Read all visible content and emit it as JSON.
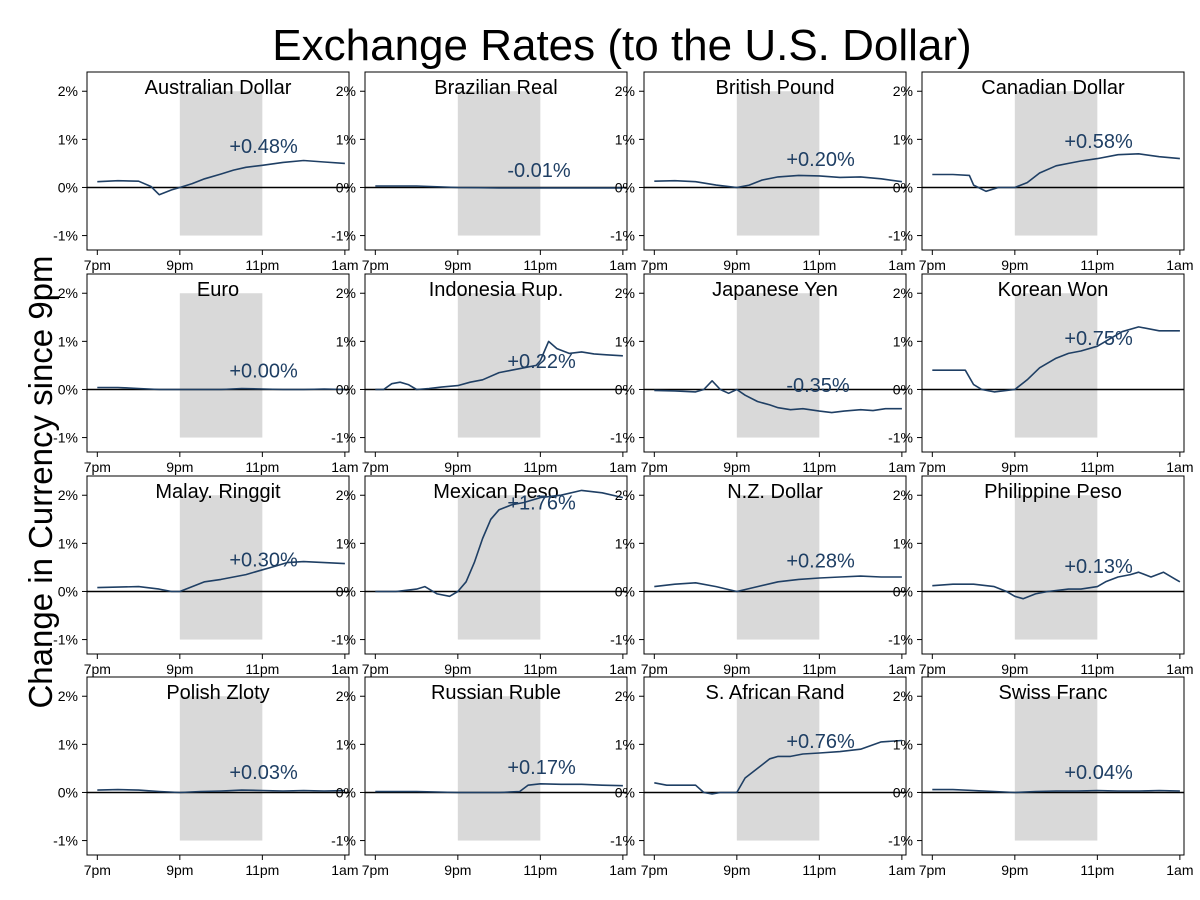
{
  "chart_data": {
    "type": "line",
    "title": "Exchange Rates (to the U.S. Dollar)",
    "ylabel": "Change in Currency since 9pm",
    "xlabel": "",
    "x_ticks": [
      0,
      2,
      4,
      6
    ],
    "x_tick_labels": [
      "7pm",
      "9pm",
      "11pm",
      "1am"
    ],
    "xlim": [
      -0.25,
      6.1
    ],
    "y_ticks": [
      -1,
      0,
      1,
      2
    ],
    "y_tick_labels": [
      "-1%",
      "0%",
      "1%",
      "2%"
    ],
    "ylim": [
      -1.3,
      2.4
    ],
    "shaded_interval": [
      2,
      4
    ],
    "shaded_y": [
      -1,
      2
    ],
    "colors": {
      "line": "#1f3f64",
      "annotation": "#1f3f64",
      "shade": "#d9d9d9",
      "zero_line": "#000000"
    },
    "panels": [
      {
        "name": "Australian Dollar",
        "annotation": "+0.48%",
        "ann_x": 3.2,
        "ann_y": 0.72,
        "x": [
          0,
          0.5,
          1,
          1.3,
          1.5,
          1.8,
          2,
          2.3,
          2.6,
          3,
          3.3,
          3.6,
          4,
          4.5,
          5,
          5.5,
          6
        ],
        "y": [
          0.12,
          0.14,
          0.13,
          0.02,
          -0.15,
          -0.05,
          0.0,
          0.08,
          0.18,
          0.28,
          0.36,
          0.42,
          0.46,
          0.52,
          0.56,
          0.53,
          0.5
        ]
      },
      {
        "name": "Brazilian Real",
        "annotation": "-0.01%",
        "ann_x": 3.2,
        "ann_y": 0.22,
        "x": [
          0,
          1,
          2,
          3,
          4,
          5,
          6
        ],
        "y": [
          0.03,
          0.03,
          0.0,
          -0.01,
          -0.01,
          -0.01,
          -0.01
        ]
      },
      {
        "name": "British Pound",
        "annotation": "+0.20%",
        "ann_x": 3.2,
        "ann_y": 0.45,
        "x": [
          0,
          0.5,
          1,
          1.5,
          1.8,
          2,
          2.3,
          2.6,
          3,
          3.5,
          4,
          4.5,
          5,
          5.5,
          6
        ],
        "y": [
          0.13,
          0.14,
          0.12,
          0.05,
          0.02,
          0.0,
          0.05,
          0.15,
          0.22,
          0.25,
          0.24,
          0.21,
          0.22,
          0.18,
          0.12
        ]
      },
      {
        "name": "Canadian Dollar",
        "annotation": "+0.58%",
        "ann_x": 3.2,
        "ann_y": 0.82,
        "x": [
          0,
          0.5,
          0.9,
          1,
          1.3,
          1.6,
          2,
          2.3,
          2.6,
          3,
          3.3,
          3.6,
          4,
          4.5,
          5,
          5.5,
          6
        ],
        "y": [
          0.27,
          0.27,
          0.25,
          0.05,
          -0.08,
          0.0,
          0.0,
          0.1,
          0.3,
          0.45,
          0.5,
          0.55,
          0.6,
          0.68,
          0.7,
          0.64,
          0.6
        ]
      },
      {
        "name": "Euro",
        "annotation": "+0.00%",
        "ann_x": 3.2,
        "ann_y": 0.25,
        "x": [
          0,
          0.5,
          1,
          1.5,
          2,
          2.5,
          3,
          3.5,
          4,
          4.5,
          5,
          5.5,
          6
        ],
        "y": [
          0.04,
          0.04,
          0.02,
          0.0,
          0.0,
          0.0,
          0.0,
          0.02,
          0.01,
          0.0,
          0.0,
          0.01,
          0.0
        ]
      },
      {
        "name": "Indonesia Rup.",
        "annotation": "+0.22%",
        "ann_x": 3.2,
        "ann_y": 0.45,
        "x": [
          0,
          0.2,
          0.4,
          0.6,
          0.8,
          1,
          1.3,
          1.6,
          2,
          2.3,
          2.6,
          3,
          3.3,
          3.6,
          3.9,
          4,
          4.1,
          4.2,
          4.4,
          4.7,
          5,
          5.3,
          5.6,
          6
        ],
        "y": [
          0.0,
          0.0,
          0.12,
          0.15,
          0.1,
          0.0,
          0.02,
          0.05,
          0.08,
          0.15,
          0.2,
          0.35,
          0.4,
          0.45,
          0.5,
          0.6,
          0.8,
          1.0,
          0.85,
          0.75,
          0.78,
          0.74,
          0.72,
          0.7
        ]
      },
      {
        "name": "Japanese Yen",
        "annotation": "-0.35%",
        "ann_x": 3.2,
        "ann_y": -0.05,
        "x": [
          0,
          0.5,
          1,
          1.2,
          1.4,
          1.6,
          1.8,
          2,
          2.2,
          2.5,
          2.8,
          3,
          3.3,
          3.6,
          4,
          4.3,
          4.6,
          5,
          5.3,
          5.6,
          6
        ],
        "y": [
          -0.02,
          -0.03,
          -0.05,
          0.0,
          0.18,
          0.0,
          -0.08,
          0.0,
          -0.12,
          -0.25,
          -0.32,
          -0.38,
          -0.42,
          -0.4,
          -0.45,
          -0.48,
          -0.45,
          -0.42,
          -0.44,
          -0.4,
          -0.4
        ]
      },
      {
        "name": "Korean Won",
        "annotation": "+0.75%",
        "ann_x": 3.2,
        "ann_y": 0.92,
        "x": [
          0,
          0.8,
          1,
          1.2,
          1.5,
          2,
          2.3,
          2.6,
          3,
          3.3,
          3.6,
          4,
          4.3,
          4.6,
          5,
          5.5,
          6
        ],
        "y": [
          0.4,
          0.4,
          0.1,
          0.0,
          -0.05,
          0.0,
          0.2,
          0.45,
          0.65,
          0.75,
          0.8,
          0.9,
          1.05,
          1.2,
          1.3,
          1.22,
          1.22
        ]
      },
      {
        "name": "Malay. Ringgit",
        "annotation": "+0.30%",
        "ann_x": 3.2,
        "ann_y": 0.52,
        "x": [
          0,
          0.5,
          1,
          1.5,
          1.8,
          2,
          2.3,
          2.6,
          3,
          3.3,
          3.6,
          4,
          4.3,
          4.6,
          5,
          5.5,
          6
        ],
        "y": [
          0.08,
          0.09,
          0.1,
          0.05,
          0.0,
          0.0,
          0.1,
          0.2,
          0.25,
          0.3,
          0.35,
          0.45,
          0.52,
          0.6,
          0.62,
          0.6,
          0.58
        ]
      },
      {
        "name": "Mexican Peso",
        "annotation": "+1.76%",
        "ann_x": 3.2,
        "ann_y": 1.7,
        "x": [
          0,
          0.5,
          1,
          1.2,
          1.5,
          1.8,
          2,
          2.2,
          2.4,
          2.6,
          2.8,
          3,
          3.3,
          3.6,
          4,
          4.5,
          5,
          5.5,
          6
        ],
        "y": [
          0.0,
          0.0,
          0.05,
          0.1,
          -0.05,
          -0.1,
          0.0,
          0.2,
          0.6,
          1.1,
          1.5,
          1.7,
          1.8,
          1.85,
          1.95,
          2.0,
          2.1,
          2.05,
          1.95
        ]
      },
      {
        "name": "N.Z. Dollar",
        "annotation": "+0.28%",
        "ann_x": 3.2,
        "ann_y": 0.5,
        "x": [
          0,
          0.5,
          1,
          1.5,
          2,
          2.5,
          3,
          3.5,
          4,
          4.5,
          5,
          5.5,
          6
        ],
        "y": [
          0.1,
          0.15,
          0.18,
          0.1,
          0.0,
          0.1,
          0.2,
          0.25,
          0.28,
          0.3,
          0.32,
          0.3,
          0.3
        ]
      },
      {
        "name": "Philippine Peso",
        "annotation": "+0.13%",
        "ann_x": 3.2,
        "ann_y": 0.38,
        "x": [
          0,
          0.5,
          1,
          1.5,
          1.8,
          2,
          2.2,
          2.5,
          2.8,
          3,
          3.3,
          3.6,
          4,
          4.2,
          4.5,
          4.8,
          5,
          5.3,
          5.6,
          5.9,
          6
        ],
        "y": [
          0.12,
          0.15,
          0.15,
          0.1,
          0.0,
          -0.1,
          -0.15,
          -0.05,
          0.0,
          0.02,
          0.05,
          0.05,
          0.1,
          0.2,
          0.3,
          0.35,
          0.4,
          0.3,
          0.4,
          0.25,
          0.2
        ]
      },
      {
        "name": "Polish Zloty",
        "annotation": "+0.03%",
        "ann_x": 3.2,
        "ann_y": 0.28,
        "x": [
          0,
          0.5,
          1,
          1.5,
          2,
          2.5,
          3,
          3.5,
          4,
          4.5,
          5,
          5.5,
          6
        ],
        "y": [
          0.05,
          0.06,
          0.05,
          0.02,
          0.0,
          0.02,
          0.03,
          0.05,
          0.04,
          0.03,
          0.04,
          0.03,
          0.04
        ]
      },
      {
        "name": "Russian Ruble",
        "annotation": "+0.17%",
        "ann_x": 3.2,
        "ann_y": 0.38,
        "x": [
          0,
          1,
          2,
          3,
          3.5,
          3.7,
          4,
          4.5,
          5,
          5.5,
          6
        ],
        "y": [
          0.02,
          0.02,
          0.0,
          0.0,
          0.02,
          0.15,
          0.18,
          0.17,
          0.17,
          0.15,
          0.14
        ]
      },
      {
        "name": "S. African Rand",
        "annotation": "+0.76%",
        "ann_x": 3.2,
        "ann_y": 0.92,
        "x": [
          0,
          0.3,
          0.6,
          1,
          1.2,
          1.4,
          1.6,
          2,
          2.2,
          2.5,
          2.8,
          3,
          3.3,
          3.6,
          4,
          4.5,
          5,
          5.5,
          6
        ],
        "y": [
          0.2,
          0.15,
          0.15,
          0.15,
          0.0,
          -0.03,
          0.0,
          0.0,
          0.3,
          0.5,
          0.7,
          0.75,
          0.75,
          0.8,
          0.82,
          0.85,
          0.9,
          1.05,
          1.08
        ]
      },
      {
        "name": "Swiss Franc",
        "annotation": "+0.04%",
        "ann_x": 3.2,
        "ann_y": 0.28,
        "x": [
          0,
          0.5,
          1,
          1.5,
          2,
          2.5,
          3,
          3.5,
          4,
          4.5,
          5,
          5.5,
          6
        ],
        "y": [
          0.06,
          0.06,
          0.04,
          0.02,
          0.0,
          0.02,
          0.03,
          0.03,
          0.04,
          0.03,
          0.03,
          0.04,
          0.03
        ]
      }
    ]
  }
}
